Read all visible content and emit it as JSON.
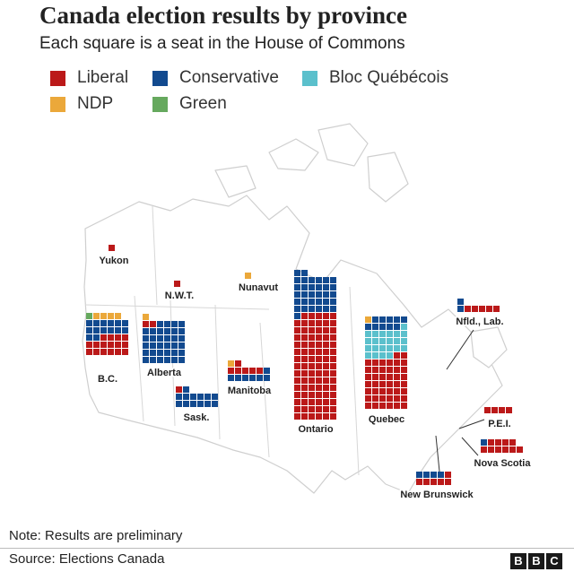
{
  "title": "Canada election results by province",
  "subtitle": "Each square is a seat in the House of Commons",
  "legend": [
    {
      "label": "Liberal",
      "color": "#bb1919"
    },
    {
      "label": "Conservative",
      "color": "#124a8f"
    },
    {
      "label": "Bloc Québécois",
      "color": "#5bc0cc"
    },
    {
      "label": "NDP",
      "color": "#eba83a"
    },
    {
      "label": "Green",
      "color": "#66a95e"
    }
  ],
  "chart_data": {
    "type": "waffle",
    "unit": "seat",
    "parties": [
      "Liberal",
      "Conservative",
      "Bloc Québécois",
      "NDP",
      "Green"
    ],
    "provinces": [
      {
        "name": "Yukon",
        "seats": {
          "Liberal": 1
        }
      },
      {
        "name": "N.W.T.",
        "seats": {
          "Liberal": 1
        }
      },
      {
        "name": "Nunavut",
        "seats": {
          "NDP": 1
        }
      },
      {
        "name": "B.C.",
        "seats": {
          "Green": 1,
          "NDP": 4,
          "Conservative": 14,
          "Liberal": 16
        }
      },
      {
        "name": "Alberta",
        "seats": {
          "NDP": 1,
          "Liberal": 2,
          "Conservative": 34
        }
      },
      {
        "name": "Sask.",
        "seats": {
          "Liberal": 1,
          "Conservative": 13
        }
      },
      {
        "name": "Manitoba",
        "seats": {
          "NDP": 1,
          "Liberal": 6,
          "Conservative": 7
        }
      },
      {
        "name": "Ontario",
        "seats": {
          "Conservative": 33,
          "Liberal": 89
        }
      },
      {
        "name": "Quebec",
        "seats": {
          "NDP": 1,
          "Conservative": 10,
          "Bloc Québécois": 23,
          "Liberal": 44
        }
      },
      {
        "name": "Nfld., Lab.",
        "seats": {
          "Conservative": 2,
          "Liberal": 5
        }
      },
      {
        "name": "P.E.I.",
        "seats": {
          "Liberal": 4
        }
      },
      {
        "name": "Nova Scotia",
        "seats": {
          "Conservative": 1,
          "Liberal": 10
        }
      },
      {
        "name": "New Brunswick",
        "seats": {
          "Conservative": 4,
          "Liberal": 6
        }
      }
    ]
  },
  "note": "Note: Results are preliminary",
  "source": "Source: Elections Canada",
  "logo": [
    "B",
    "B",
    "C"
  ]
}
